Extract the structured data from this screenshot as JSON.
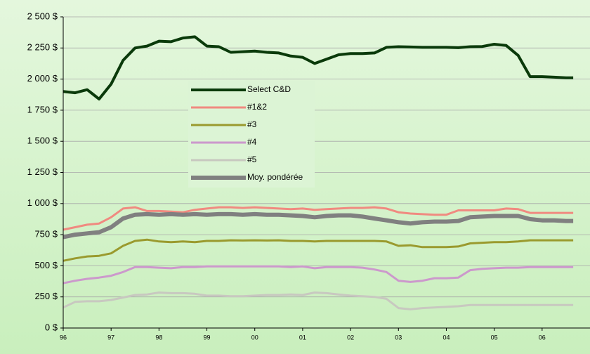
{
  "chart_data": {
    "type": "line",
    "x": [
      1996,
      1996.25,
      1996.5,
      1996.75,
      1997,
      1997.25,
      1997.5,
      1997.75,
      1998,
      1998.25,
      1998.5,
      1998.75,
      1999,
      1999.25,
      1999.5,
      1999.75,
      2000,
      2000.25,
      2000.5,
      2000.75,
      2001,
      2001.25,
      2001.5,
      2001.75,
      2002,
      2002.25,
      2002.5,
      2002.75,
      2003,
      2003.25,
      2003.5,
      2003.75,
      2004,
      2004.25,
      2004.5,
      2004.75,
      2005,
      2005.25,
      2005.5,
      2005.75,
      2006,
      2006.25,
      2006.5,
      2006.65
    ],
    "series": [
      {
        "name": "Select C&D",
        "color": "#0a3a0a",
        "values": [
          1900,
          1890,
          1915,
          1840,
          1960,
          2150,
          2250,
          2265,
          2305,
          2300,
          2330,
          2340,
          2265,
          2260,
          2215,
          2220,
          2225,
          2215,
          2210,
          2185,
          2175,
          2125,
          2160,
          2195,
          2205,
          2205,
          2210,
          2255,
          2260,
          2258,
          2255,
          2255,
          2255,
          2252,
          2260,
          2262,
          2280,
          2270,
          2190,
          2020,
          2020,
          2015,
          2010,
          2010
        ]
      },
      {
        "name": "#1&2",
        "color": "#f08a80",
        "values": [
          790,
          810,
          830,
          840,
          890,
          960,
          970,
          940,
          940,
          935,
          930,
          950,
          960,
          970,
          970,
          965,
          970,
          965,
          960,
          955,
          960,
          950,
          955,
          960,
          965,
          965,
          970,
          960,
          930,
          920,
          915,
          910,
          910,
          945,
          945,
          945,
          945,
          960,
          955,
          925,
          925,
          925,
          925,
          925
        ]
      },
      {
        "name": "#3",
        "color": "#9a9a2e",
        "values": [
          540,
          560,
          575,
          580,
          600,
          660,
          700,
          710,
          695,
          690,
          695,
          690,
          700,
          700,
          705,
          703,
          705,
          703,
          705,
          700,
          700,
          695,
          700,
          700,
          700,
          700,
          700,
          695,
          660,
          665,
          650,
          650,
          650,
          655,
          680,
          685,
          690,
          690,
          695,
          705,
          705,
          705,
          705,
          705
        ]
      },
      {
        "name": "#4",
        "color": "#cc99cc",
        "values": [
          360,
          380,
          395,
          405,
          420,
          450,
          490,
          490,
          485,
          480,
          490,
          490,
          495,
          495,
          495,
          495,
          495,
          495,
          495,
          490,
          495,
          480,
          490,
          490,
          490,
          485,
          470,
          450,
          380,
          370,
          380,
          400,
          400,
          405,
          465,
          475,
          480,
          485,
          485,
          490,
          490,
          490,
          490,
          490
        ]
      },
      {
        "name": "#5",
        "color": "#c8c8c0",
        "values": [
          165,
          210,
          215,
          215,
          225,
          245,
          265,
          270,
          285,
          280,
          280,
          275,
          260,
          260,
          255,
          255,
          260,
          265,
          265,
          270,
          265,
          285,
          280,
          270,
          260,
          255,
          250,
          235,
          160,
          150,
          160,
          165,
          170,
          175,
          185,
          185,
          185,
          185,
          185,
          185,
          185,
          185,
          185,
          185
        ]
      },
      {
        "name": "Moy. pondérée",
        "color": "#808080",
        "values": [
          730,
          750,
          760,
          770,
          810,
          880,
          910,
          915,
          910,
          915,
          910,
          915,
          910,
          915,
          915,
          910,
          915,
          910,
          910,
          905,
          900,
          890,
          900,
          905,
          905,
          895,
          880,
          865,
          850,
          840,
          850,
          855,
          855,
          860,
          890,
          895,
          900,
          900,
          900,
          875,
          865,
          865,
          860,
          860
        ]
      }
    ],
    "xlim": [
      1996,
      2007
    ],
    "xticks": [
      {
        "value": 1996,
        "label": "96"
      },
      {
        "value": 1997,
        "label": "97"
      },
      {
        "value": 1998,
        "label": "98"
      },
      {
        "value": 1999,
        "label": "99"
      },
      {
        "value": 2000,
        "label": "00"
      },
      {
        "value": 2001,
        "label": "01"
      },
      {
        "value": 2002,
        "label": "02"
      },
      {
        "value": 2003,
        "label": "03"
      },
      {
        "value": 2004,
        "label": "04"
      },
      {
        "value": 2005,
        "label": "05"
      },
      {
        "value": 2006,
        "label": "06"
      }
    ],
    "ylim": [
      0,
      2500
    ],
    "yticks": [
      {
        "value": 0,
        "label": "0 $"
      },
      {
        "value": 250,
        "label": "250 $"
      },
      {
        "value": 500,
        "label": "500 $"
      },
      {
        "value": 750,
        "label": "750 $"
      },
      {
        "value": 1000,
        "label": "1 000 $"
      },
      {
        "value": 1250,
        "label": "1 250 $"
      },
      {
        "value": 1500,
        "label": "1 500 $"
      },
      {
        "value": 1750,
        "label": "1 750 $"
      },
      {
        "value": 2000,
        "label": "2 000 $"
      },
      {
        "value": 2250,
        "label": "2 250 $"
      },
      {
        "value": 2500,
        "label": "2 500 $"
      }
    ],
    "grid": true
  }
}
